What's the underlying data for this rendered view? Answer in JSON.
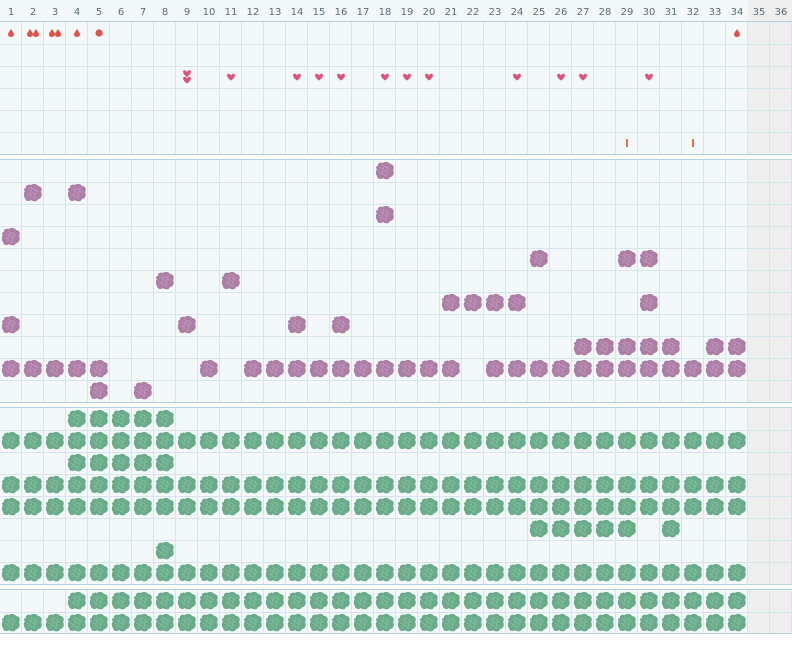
{
  "calendar": {
    "days": [
      "1",
      "2",
      "3",
      "4",
      "5",
      "6",
      "7",
      "8",
      "9",
      "10",
      "11",
      "12",
      "13",
      "14",
      "15",
      "16",
      "17",
      "18",
      "19",
      "20",
      "21",
      "22",
      "23",
      "24",
      "25",
      "26",
      "27",
      "28",
      "29",
      "30",
      "31",
      "32",
      "33",
      "34",
      "35",
      "36"
    ],
    "active_days": 34,
    "colors": {
      "background": "#f3f8fb",
      "background_inactive": "#eeeeee",
      "grid": "#d6e4ec",
      "header_border": "#b9cfdc",
      "separator": "#ffffff",
      "red_marker": "#e2524d",
      "heart_marker": "#e0507a",
      "orange_tick": "#e8743a",
      "purple_blob": "#ad7fa6",
      "green_blob": "#6aab8a"
    }
  },
  "sections": [
    {
      "name": "markers",
      "rows": 6,
      "cells": [
        {
          "row": 0,
          "day": 1,
          "icon": "drop-icon",
          "count": 1
        },
        {
          "row": 0,
          "day": 2,
          "icon": "drop-icon",
          "count": 2
        },
        {
          "row": 0,
          "day": 3,
          "icon": "drop-icon",
          "count": 2
        },
        {
          "row": 0,
          "day": 4,
          "icon": "drop-icon",
          "count": 1
        },
        {
          "row": 0,
          "day": 5,
          "icon": "dot-icon",
          "count": 1
        },
        {
          "row": 0,
          "day": 34,
          "icon": "drop-icon",
          "count": 1
        },
        {
          "row": 2,
          "day": 9,
          "icon": "heart-icon",
          "count": 2
        },
        {
          "row": 2,
          "day": 11,
          "icon": "heart-icon",
          "count": 1
        },
        {
          "row": 2,
          "day": 14,
          "icon": "heart-icon",
          "count": 1
        },
        {
          "row": 2,
          "day": 15,
          "icon": "heart-icon",
          "count": 1
        },
        {
          "row": 2,
          "day": 16,
          "icon": "heart-icon",
          "count": 1
        },
        {
          "row": 2,
          "day": 18,
          "icon": "heart-icon",
          "count": 1
        },
        {
          "row": 2,
          "day": 19,
          "icon": "heart-icon",
          "count": 1
        },
        {
          "row": 2,
          "day": 20,
          "icon": "heart-icon",
          "count": 1
        },
        {
          "row": 2,
          "day": 24,
          "icon": "heart-icon",
          "count": 1
        },
        {
          "row": 2,
          "day": 26,
          "icon": "heart-icon",
          "count": 1
        },
        {
          "row": 2,
          "day": 27,
          "icon": "heart-icon",
          "count": 1
        },
        {
          "row": 2,
          "day": 30,
          "icon": "heart-icon",
          "count": 1
        },
        {
          "row": 5,
          "day": 29,
          "icon": "tick-icon",
          "count": 1
        },
        {
          "row": 5,
          "day": 32,
          "icon": "tick-icon",
          "count": 1
        }
      ]
    },
    {
      "name": "purple",
      "rows": 11,
      "blob_icon": "purple-blob-icon",
      "cells": [
        [
          0,
          [
            18
          ]
        ],
        [
          1,
          [
            2,
            4
          ]
        ],
        [
          2,
          [
            18
          ]
        ],
        [
          3,
          [
            1
          ]
        ],
        [
          4,
          [
            25,
            29,
            30
          ]
        ],
        [
          5,
          [
            8,
            11
          ]
        ],
        [
          6,
          [
            21,
            22,
            23,
            24,
            30
          ]
        ],
        [
          7,
          [
            1,
            9,
            14,
            16
          ]
        ],
        [
          8,
          [
            27,
            28,
            29,
            30,
            31,
            33,
            34
          ]
        ],
        [
          9,
          [
            1,
            2,
            3,
            4,
            5,
            10,
            12,
            13,
            14,
            15,
            16,
            17,
            18,
            19,
            20,
            21,
            23,
            24,
            25,
            26,
            27,
            28,
            29,
            30,
            31,
            32,
            33,
            34
          ]
        ],
        [
          10,
          [
            5,
            7
          ]
        ]
      ]
    },
    {
      "name": "green",
      "rows": 8,
      "blob_icon": "green-blob-icon",
      "cells": [
        [
          0,
          [
            4,
            5,
            6,
            7,
            8
          ]
        ],
        [
          1,
          [
            1,
            2,
            3,
            4,
            5,
            6,
            7,
            8,
            9,
            10,
            11,
            12,
            13,
            14,
            15,
            16,
            17,
            18,
            19,
            20,
            21,
            22,
            23,
            24,
            25,
            26,
            27,
            28,
            29,
            30,
            31,
            32,
            33,
            34
          ]
        ],
        [
          2,
          [
            4,
            5,
            6,
            7,
            8
          ]
        ],
        [
          3,
          [
            1,
            2,
            3,
            4,
            5,
            6,
            7,
            8,
            9,
            10,
            11,
            12,
            13,
            14,
            15,
            16,
            17,
            18,
            19,
            20,
            21,
            22,
            23,
            24,
            25,
            26,
            27,
            28,
            29,
            30,
            31,
            32,
            33,
            34
          ]
        ],
        [
          4,
          [
            1,
            2,
            3,
            4,
            5,
            6,
            7,
            8,
            9,
            10,
            11,
            12,
            13,
            14,
            15,
            16,
            17,
            18,
            19,
            20,
            21,
            22,
            23,
            24,
            25,
            26,
            27,
            28,
            29,
            30,
            31,
            32,
            33,
            34
          ]
        ],
        [
          5,
          [
            25,
            26,
            27,
            28,
            29,
            31
          ]
        ],
        [
          6,
          [
            8
          ]
        ],
        [
          7,
          [
            1,
            2,
            3,
            4,
            5,
            6,
            7,
            8,
            9,
            10,
            11,
            12,
            13,
            14,
            15,
            16,
            17,
            18,
            19,
            20,
            21,
            22,
            23,
            24,
            25,
            26,
            27,
            28,
            29,
            30,
            31,
            32,
            33,
            34
          ]
        ]
      ]
    },
    {
      "name": "green-2",
      "rows": 2,
      "blob_icon": "green-blob-icon",
      "cells": [
        [
          0,
          [
            4,
            5,
            6,
            7,
            8,
            9,
            10,
            11,
            12,
            13,
            14,
            15,
            16,
            17,
            18,
            19,
            20,
            21,
            22,
            23,
            24,
            25,
            26,
            27,
            28,
            29,
            30,
            31,
            32,
            33,
            34
          ]
        ],
        [
          1,
          [
            1,
            2,
            3,
            4,
            5,
            6,
            7,
            8,
            9,
            10,
            11,
            12,
            13,
            14,
            15,
            16,
            17,
            18,
            19,
            20,
            21,
            22,
            23,
            24,
            25,
            26,
            27,
            28,
            29,
            30,
            31,
            32,
            33,
            34
          ]
        ]
      ]
    }
  ]
}
